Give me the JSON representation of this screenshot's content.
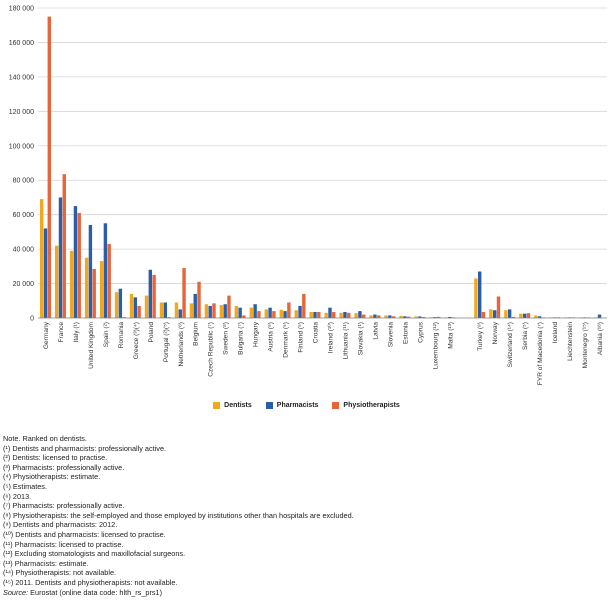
{
  "colors": {
    "Dentists": "#f2a81d",
    "Pharmacists": "#2a5ea8",
    "Physiotherapists": "#e8643a",
    "grid": "#d4d4d4",
    "axis": "#7f7f7f"
  },
  "chart_data": {
    "type": "bar",
    "ylim": [
      0,
      180000
    ],
    "yticks": [
      0,
      20000,
      40000,
      60000,
      80000,
      100000,
      120000,
      140000,
      160000,
      180000
    ],
    "ytick_labels": [
      "0",
      "20 000",
      "40 000",
      "60 000",
      "80 000",
      "100 000",
      "120 000",
      "140 000",
      "160 000",
      "180 000"
    ],
    "grid": true,
    "legend_position": "bottom",
    "categories": [
      "Germany",
      "France",
      "Italy (¹)",
      "United Kingdom",
      "Spain (²)",
      "Romania",
      "Greece (³)(⁴)",
      "Poland",
      "Portugal (²)(⁵)",
      "Netherlands (⁶)",
      "Belgium",
      "Czech Republic (⁷)",
      "Sweden (⁸)",
      "Bulgaria (⁷)",
      "Hungary",
      "Austria (⁹)",
      "Denmark (⁵)",
      "Finland (⁵)",
      "Croatia",
      "Ireland (¹⁰)",
      "Lithuania (¹¹)",
      "Slovakia (¹)",
      "Latvia",
      "Slovenia",
      "Estonia",
      "Cyprus",
      "Luxembourg (¹²)",
      "Malta (¹³)",
      "",
      "Turkey (⁸)",
      "Norway",
      "Switzerland (¹⁴)",
      "Serbia (⁵)",
      "FYR of Macedonia (⁷)",
      "Iceland",
      "Liechtenstein",
      "Montenegro (¹⁵)",
      "Albania (¹⁶)"
    ],
    "series": [
      {
        "name": "Dentists",
        "values": [
          69000,
          42000,
          39000,
          35000,
          33000,
          15000,
          14000,
          13000,
          9000,
          9000,
          8500,
          8000,
          7500,
          7000,
          6000,
          5000,
          4800,
          4500,
          3500,
          3000,
          3000,
          2800,
          1500,
          1500,
          1200,
          900,
          400,
          250,
          null,
          23000,
          5000,
          4500,
          2500,
          1500,
          300,
          100,
          300,
          100
        ]
      },
      {
        "name": "Pharmacists",
        "values": [
          52000,
          70000,
          65000,
          54000,
          55000,
          17000,
          12000,
          28000,
          9000,
          5000,
          14000,
          7000,
          8000,
          6000,
          8000,
          6000,
          4000,
          7000,
          3500,
          6000,
          3500,
          4000,
          2000,
          1500,
          1000,
          900,
          500,
          600,
          null,
          27000,
          4500,
          5000,
          2500,
          1000,
          300,
          100,
          300,
          2000
        ]
      },
      {
        "name": "Physiotherapists",
        "values": [
          175000,
          83500,
          61000,
          28500,
          43000,
          500,
          7000,
          25000,
          500,
          29000,
          21000,
          8500,
          13000,
          1500,
          4000,
          4000,
          9000,
          14000,
          3500,
          3500,
          3000,
          2000,
          1500,
          1000,
          800,
          600,
          700,
          100,
          null,
          3500,
          12500,
          600,
          2800,
          300,
          400,
          200,
          100,
          0
        ]
      }
    ]
  },
  "notes": [
    "Note. Ranked on dentists.",
    "(¹) Dentists and pharmacists: professionally active.",
    "(²) Dentists: licensed to practise.",
    "(³) Pharmacists: professionally active.",
    "(⁴) Physiotherapists: estimate.",
    "(⁵) Estimates.",
    "(⁶) 2013.",
    "(⁷) Pharmacists: professionally active.",
    "(⁸) Physiotherapists: the self-employed and those employed by institutions other than hospitals are excluded.",
    "(⁹) Dentists and pharmacists: 2012.",
    "(¹⁰) Dentists and pharmacists: licensed to practise.",
    "(¹¹) Pharmacists: licensed to practise.",
    "(¹²) Excluding stomatologists and maxillofacial surgeons.",
    "(¹³) Pharmacists: estimate.",
    "(¹⁴) Physiotherapists: not available.",
    "(¹⁵) 2011. Dentists and physiotherapists: not available."
  ],
  "source": {
    "label": "Source:",
    "text": " Eurostat (online data code: hlth_rs_prs1)"
  }
}
